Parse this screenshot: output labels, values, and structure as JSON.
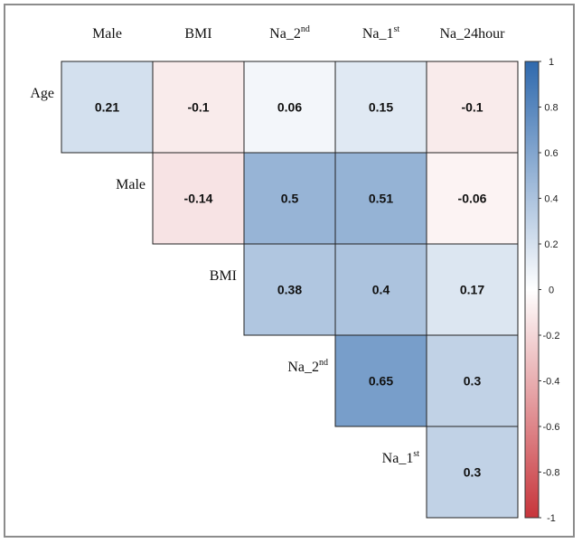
{
  "chart_data": {
    "type": "heatmap",
    "variant": "upper-triangular correlation matrix",
    "columns": [
      {
        "base": "Male",
        "sup": ""
      },
      {
        "base": "BMI",
        "sup": ""
      },
      {
        "base": "Na_2",
        "sup": "nd"
      },
      {
        "base": "Na_1",
        "sup": "st"
      },
      {
        "base": "Na_24hour",
        "sup": ""
      }
    ],
    "rows": [
      {
        "base": "Age",
        "sup": ""
      },
      {
        "base": "Male",
        "sup": ""
      },
      {
        "base": "BMI",
        "sup": ""
      },
      {
        "base": "Na_2",
        "sup": "nd"
      },
      {
        "base": "Na_1",
        "sup": "st"
      }
    ],
    "cells": [
      {
        "row": 0,
        "col": 0,
        "value": 0.21
      },
      {
        "row": 0,
        "col": 1,
        "value": -0.1
      },
      {
        "row": 0,
        "col": 2,
        "value": 0.06
      },
      {
        "row": 0,
        "col": 3,
        "value": 0.15
      },
      {
        "row": 0,
        "col": 4,
        "value": -0.1
      },
      {
        "row": 1,
        "col": 1,
        "value": -0.14
      },
      {
        "row": 1,
        "col": 2,
        "value": 0.5
      },
      {
        "row": 1,
        "col": 3,
        "value": 0.51
      },
      {
        "row": 1,
        "col": 4,
        "value": -0.06
      },
      {
        "row": 2,
        "col": 2,
        "value": 0.38
      },
      {
        "row": 2,
        "col": 3,
        "value": 0.4
      },
      {
        "row": 2,
        "col": 4,
        "value": 0.17
      },
      {
        "row": 3,
        "col": 3,
        "value": 0.65
      },
      {
        "row": 3,
        "col": 4,
        "value": 0.3
      },
      {
        "row": 4,
        "col": 4,
        "value": 0.3
      }
    ],
    "colorbar": {
      "range": [
        -1,
        1
      ],
      "ticks": [
        1,
        0.8,
        0.6,
        0.4,
        0.2,
        0,
        -0.2,
        -0.4,
        -0.6,
        -0.8,
        -1
      ],
      "tick_labels": [
        "1",
        "0.8",
        "0.6",
        "0.4",
        "0.2",
        "0",
        "-0.2",
        "-0.4",
        "-0.6",
        "-0.8",
        "-1"
      ],
      "colors": {
        "negative": "#c7353b",
        "neutral": "#ffffff",
        "positive": "#2f69ad"
      }
    }
  }
}
